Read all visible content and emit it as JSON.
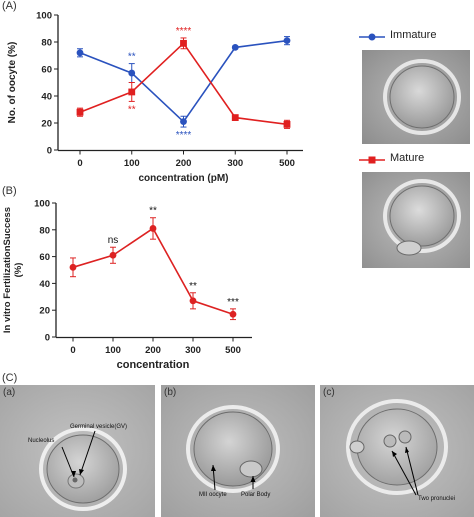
{
  "panels": {
    "a": "(A)",
    "b": "(B)",
    "c": "(C)",
    "ca": "(a)",
    "cb": "(b)",
    "cc": "(c)"
  },
  "legend": {
    "immature": "Immature",
    "mature": "Mature"
  },
  "colors": {
    "immature": "#2a52be",
    "mature": "#e02020",
    "b_line": "#dd2222",
    "axis": "#222222"
  },
  "chart_data": [
    {
      "type": "line",
      "title": "",
      "xlabel": "concentration (pM)",
      "ylabel": "No. of oocyte (%)",
      "categories": [
        "0",
        "100",
        "200",
        "300",
        "500"
      ],
      "ylim": [
        0,
        100
      ],
      "yticks": [
        "0",
        "20",
        "40",
        "60",
        "80",
        "100"
      ],
      "grid": false,
      "series": [
        {
          "name": "Immature",
          "values": [
            72,
            57,
            21,
            76,
            81
          ],
          "errors": [
            3,
            7,
            4,
            1,
            3
          ],
          "annotations": [
            "",
            "**",
            "****",
            "",
            ""
          ]
        },
        {
          "name": "Mature",
          "values": [
            28,
            43,
            79,
            24,
            19
          ],
          "errors": [
            3,
            7,
            4,
            1,
            3
          ],
          "annotations": [
            "",
            "**",
            "****",
            "",
            ""
          ]
        }
      ]
    },
    {
      "type": "line",
      "title": "",
      "xlabel": "concentration",
      "ylabel": "In vitro FertilizationSuccess (%)",
      "categories": [
        "0",
        "100",
        "200",
        "300",
        "500"
      ],
      "ylim": [
        0,
        100
      ],
      "yticks": [
        "0",
        "20",
        "40",
        "60",
        "80",
        "100"
      ],
      "grid": false,
      "series": [
        {
          "values": [
            52,
            61,
            81,
            27,
            17
          ],
          "errors": [
            7,
            6,
            8,
            6,
            4
          ],
          "annotations": [
            "",
            "ns",
            "**",
            "**",
            "***"
          ]
        }
      ]
    }
  ],
  "micrographs": {
    "a": {
      "nucleolus": "Nucleolus",
      "gv": "Germinal vesicle(GV)"
    },
    "b": {
      "mii": "MII oocyte",
      "polar": "Polar Body"
    },
    "c": {
      "pronuclei": "Two pronuclei"
    }
  }
}
